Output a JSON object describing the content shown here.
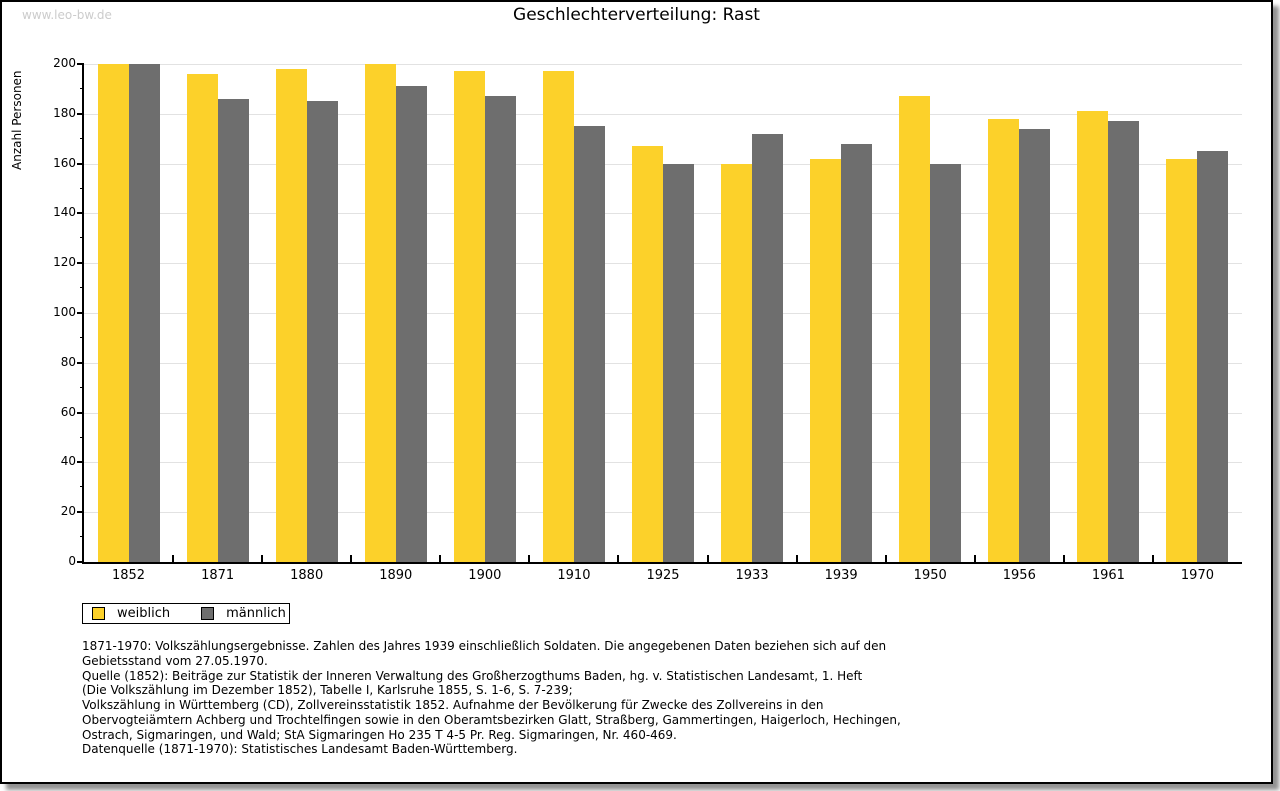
{
  "watermark": "www.leo-bw.de",
  "title": "Geschlechterverteilung: Rast",
  "footnotes": [
    "1871-1970: Volkszählungsergebnisse. Zahlen des Jahres 1939 einschließlich Soldaten. Die angegebenen Daten beziehen sich auf den",
    "Gebietsstand vom 27.05.1970.",
    "Quelle (1852): Beiträge zur Statistik der Inneren Verwaltung des Großherzogthums Baden, hg. v. Statistischen Landesamt, 1. Heft",
    "(Die Volkszählung im Dezember 1852), Tabelle I, Karlsruhe 1855, S. 1-6, S. 7-239;",
    "Volkszählung in Württemberg (CD), Zollvereinsstatistik 1852. Aufnahme der Bevölkerung für Zwecke des Zollvereins in den",
    "Obervogteiämtern Achberg und Trochtelfingen sowie in den Oberamtsbezirken Glatt, Straßberg, Gammertingen, Haigerloch, Hechingen,",
    "Ostrach, Sigmaringen, und Wald; StA Sigmaringen Ho 235 T 4-5 Pr. Reg. Sigmaringen, Nr. 460-469."
  ],
  "datasource": "Datenquelle (1871-1970): Statistisches Landesamt Baden-Württemberg.",
  "chart_data": {
    "type": "bar",
    "title": "Geschlechterverteilung: Rast",
    "xlabel": "",
    "ylabel": "Anzahl Personen",
    "categories": [
      "1852",
      "1871",
      "1880",
      "1890",
      "1900",
      "1910",
      "1925",
      "1933",
      "1939",
      "1950",
      "1956",
      "1961",
      "1970"
    ],
    "series": [
      {
        "name": "weiblich",
        "color": "#FCD12A",
        "values": [
          200,
          196,
          198,
          200,
          197,
          197,
          167,
          160,
          162,
          187,
          178,
          181,
          162
        ]
      },
      {
        "name": "männlich",
        "color": "#6E6E6E",
        "values": [
          200,
          186,
          185,
          191,
          187,
          175,
          160,
          172,
          168,
          160,
          174,
          177,
          165
        ]
      }
    ],
    "ylim": [
      0,
      200
    ],
    "ytick_step": 20,
    "ytick_minor_step": 10,
    "grid": true,
    "legend_position": "bottom-left"
  }
}
